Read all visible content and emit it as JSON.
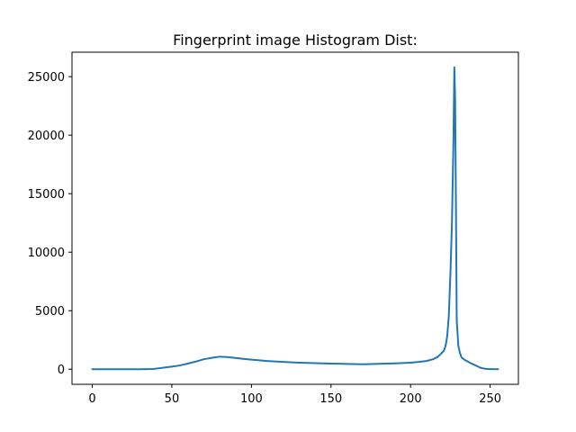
{
  "chart_data": {
    "type": "line",
    "title": "Fingerprint image Histogram Dist:",
    "xlabel": "",
    "ylabel": "",
    "xlim": [
      -12.75,
      267.75
    ],
    "ylim": [
      -1290,
      27090
    ],
    "xticks": [
      0,
      50,
      100,
      150,
      200,
      250
    ],
    "yticks": [
      0,
      5000,
      10000,
      15000,
      20000,
      25000
    ],
    "grid": false,
    "line_color": "#1f77b4",
    "series": [
      {
        "name": "",
        "x": [
          0,
          10,
          20,
          30,
          38,
          42,
          46,
          50,
          55,
          60,
          65,
          70,
          75,
          80,
          85,
          90,
          95,
          100,
          110,
          120,
          130,
          140,
          150,
          160,
          170,
          180,
          190,
          200,
          205,
          210,
          214,
          217,
          219,
          221,
          222,
          223,
          224,
          225,
          226,
          227,
          227.5,
          228,
          228.5,
          229,
          230,
          231,
          232,
          234,
          236,
          238,
          240,
          242,
          244,
          246,
          248,
          250,
          252,
          255
        ],
        "y": [
          0,
          0,
          0,
          0,
          20,
          80,
          150,
          220,
          320,
          480,
          650,
          850,
          970,
          1070,
          1040,
          960,
          880,
          820,
          700,
          620,
          560,
          520,
          480,
          450,
          420,
          460,
          500,
          560,
          620,
          700,
          850,
          1050,
          1300,
          1600,
          2000,
          2800,
          4500,
          8000,
          12500,
          20000,
          25800,
          23000,
          14000,
          4200,
          2000,
          1400,
          1000,
          800,
          650,
          500,
          380,
          250,
          120,
          60,
          20,
          10,
          5,
          0
        ]
      }
    ]
  }
}
